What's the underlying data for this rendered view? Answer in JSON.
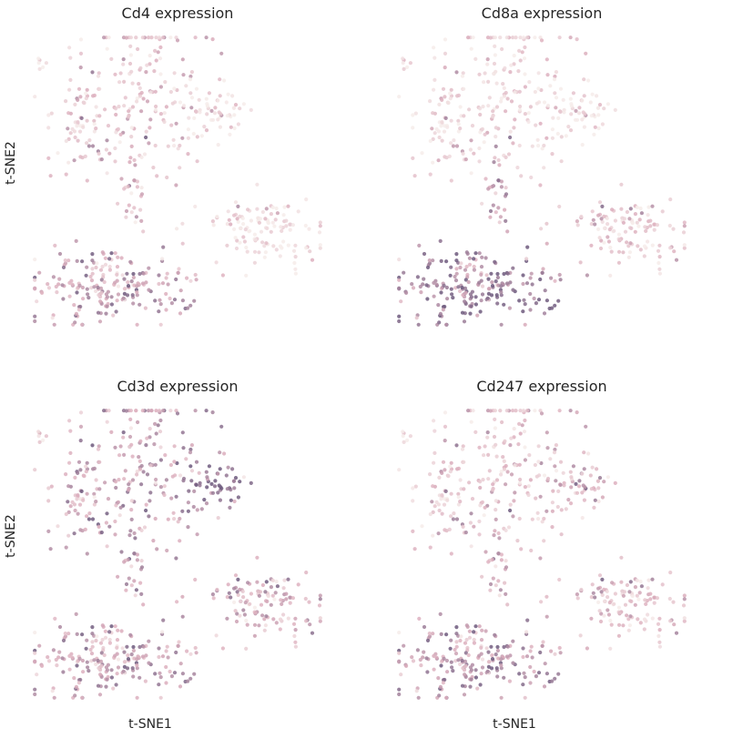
{
  "figure": {
    "xlabel": "t-SNE1",
    "ylabel": "t-SNE2"
  },
  "colors": {
    "low": "#f6ecea",
    "mid": "#dcaebd",
    "high": "#6e5a7e"
  },
  "chart_data": [
    {
      "type": "scatter",
      "title": "Cd4 expression",
      "xlabel": "",
      "ylabel": "t-SNE2",
      "clusters": [
        {
          "cx": 0.4,
          "cy": 0.22,
          "sx": 0.1,
          "sy": 0.16,
          "n": 170,
          "expr": 0.38
        },
        {
          "cx": 0.16,
          "cy": 0.28,
          "sx": 0.06,
          "sy": 0.09,
          "n": 60,
          "expr": 0.3
        },
        {
          "cx": 0.62,
          "cy": 0.27,
          "sx": 0.06,
          "sy": 0.04,
          "n": 55,
          "expr": 0.1
        },
        {
          "cx": 0.78,
          "cy": 0.66,
          "sx": 0.11,
          "sy": 0.06,
          "n": 120,
          "expr": 0.12
        },
        {
          "cx": 0.27,
          "cy": 0.85,
          "sx": 0.13,
          "sy": 0.07,
          "n": 210,
          "expr": 0.55
        },
        {
          "cx": 0.35,
          "cy": 0.55,
          "sx": 0.02,
          "sy": 0.07,
          "n": 25,
          "expr": 0.35
        },
        {
          "cx": 0.03,
          "cy": 0.1,
          "sx": 0.01,
          "sy": 0.01,
          "n": 6,
          "expr": 0.1
        }
      ]
    },
    {
      "type": "scatter",
      "title": "Cd8a expression",
      "xlabel": "",
      "ylabel": "",
      "clusters": [
        {
          "cx": 0.4,
          "cy": 0.22,
          "sx": 0.1,
          "sy": 0.16,
          "n": 170,
          "expr": 0.25
        },
        {
          "cx": 0.16,
          "cy": 0.28,
          "sx": 0.06,
          "sy": 0.09,
          "n": 60,
          "expr": 0.18
        },
        {
          "cx": 0.62,
          "cy": 0.27,
          "sx": 0.06,
          "sy": 0.04,
          "n": 55,
          "expr": 0.08
        },
        {
          "cx": 0.78,
          "cy": 0.66,
          "sx": 0.11,
          "sy": 0.06,
          "n": 120,
          "expr": 0.3
        },
        {
          "cx": 0.27,
          "cy": 0.85,
          "sx": 0.13,
          "sy": 0.07,
          "n": 210,
          "expr": 0.78
        },
        {
          "cx": 0.35,
          "cy": 0.55,
          "sx": 0.02,
          "sy": 0.07,
          "n": 25,
          "expr": 0.6
        },
        {
          "cx": 0.03,
          "cy": 0.1,
          "sx": 0.01,
          "sy": 0.01,
          "n": 6,
          "expr": 0.25
        }
      ]
    },
    {
      "type": "scatter",
      "title": "Cd3d expression",
      "xlabel": "t-SNE1",
      "ylabel": "t-SNE2",
      "clusters": [
        {
          "cx": 0.4,
          "cy": 0.22,
          "sx": 0.1,
          "sy": 0.16,
          "n": 170,
          "expr": 0.62
        },
        {
          "cx": 0.16,
          "cy": 0.28,
          "sx": 0.06,
          "sy": 0.09,
          "n": 60,
          "expr": 0.52
        },
        {
          "cx": 0.62,
          "cy": 0.27,
          "sx": 0.06,
          "sy": 0.04,
          "n": 55,
          "expr": 0.88
        },
        {
          "cx": 0.78,
          "cy": 0.66,
          "sx": 0.11,
          "sy": 0.06,
          "n": 120,
          "expr": 0.5
        },
        {
          "cx": 0.27,
          "cy": 0.85,
          "sx": 0.13,
          "sy": 0.07,
          "n": 210,
          "expr": 0.55
        },
        {
          "cx": 0.35,
          "cy": 0.55,
          "sx": 0.02,
          "sy": 0.07,
          "n": 25,
          "expr": 0.55
        },
        {
          "cx": 0.03,
          "cy": 0.1,
          "sx": 0.01,
          "sy": 0.01,
          "n": 6,
          "expr": 0.3
        }
      ]
    },
    {
      "type": "scatter",
      "title": "Cd247 expression",
      "xlabel": "t-SNE1",
      "ylabel": "",
      "clusters": [
        {
          "cx": 0.4,
          "cy": 0.22,
          "sx": 0.1,
          "sy": 0.16,
          "n": 170,
          "expr": 0.4
        },
        {
          "cx": 0.16,
          "cy": 0.28,
          "sx": 0.06,
          "sy": 0.09,
          "n": 60,
          "expr": 0.3
        },
        {
          "cx": 0.62,
          "cy": 0.27,
          "sx": 0.06,
          "sy": 0.04,
          "n": 55,
          "expr": 0.45
        },
        {
          "cx": 0.78,
          "cy": 0.66,
          "sx": 0.11,
          "sy": 0.06,
          "n": 120,
          "expr": 0.38
        },
        {
          "cx": 0.27,
          "cy": 0.85,
          "sx": 0.13,
          "sy": 0.07,
          "n": 210,
          "expr": 0.62
        },
        {
          "cx": 0.35,
          "cy": 0.55,
          "sx": 0.02,
          "sy": 0.07,
          "n": 25,
          "expr": 0.45
        },
        {
          "cx": 0.03,
          "cy": 0.1,
          "sx": 0.01,
          "sy": 0.01,
          "n": 6,
          "expr": 0.15
        }
      ]
    }
  ]
}
